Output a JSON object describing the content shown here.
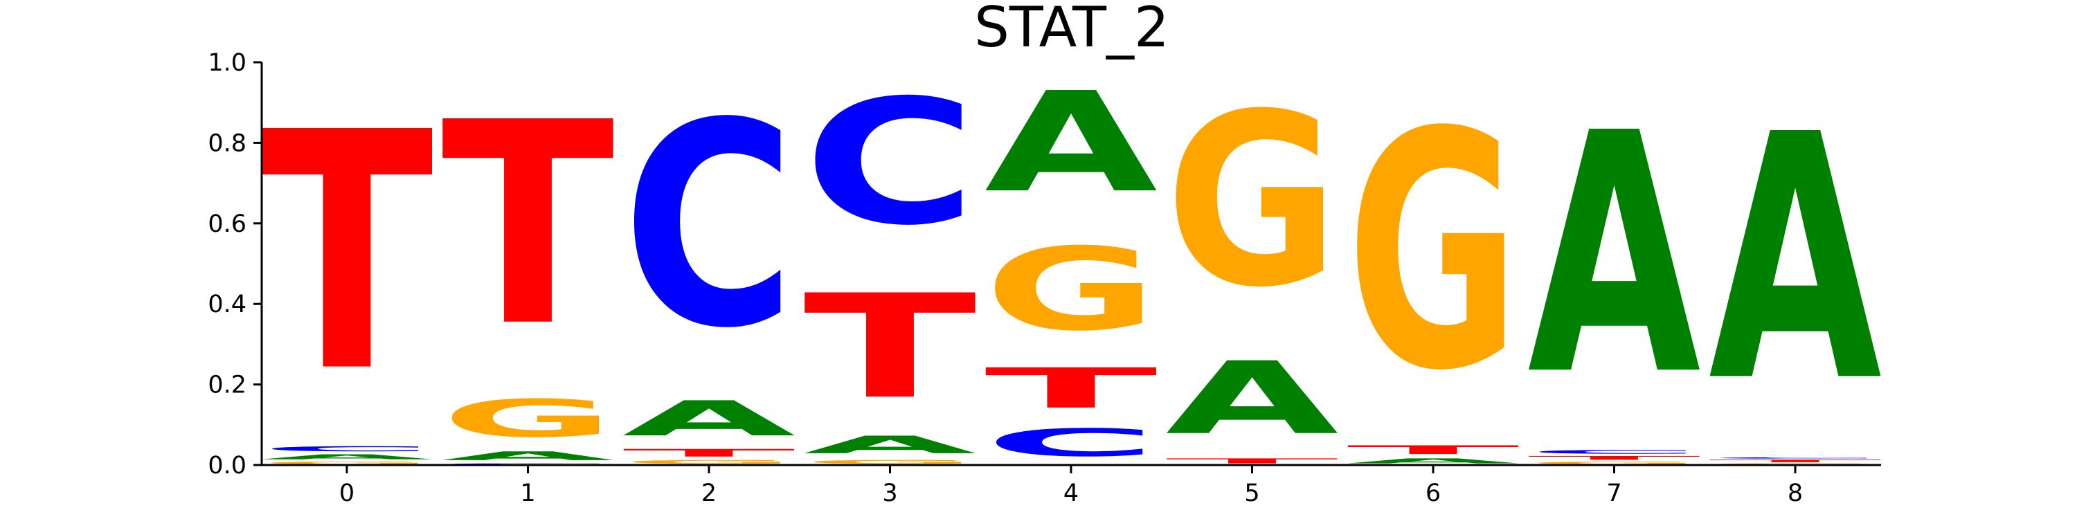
{
  "chart_data": {
    "type": "sequence-logo",
    "title": "STAT_2",
    "xlabel": "",
    "ylabel": "",
    "ylim": [
      0,
      1
    ],
    "yticks": [
      "0.0",
      "0.2",
      "0.4",
      "0.6",
      "0.8",
      "1.0"
    ],
    "positions": [
      "0",
      "1",
      "2",
      "3",
      "4",
      "5",
      "6",
      "7",
      "8"
    ],
    "colors": {
      "A": "#008000",
      "C": "#0000ff",
      "G": "#ffa500",
      "T": "#ff0000"
    },
    "columns": [
      [
        {
          "base": "G",
          "value": 0.01
        },
        {
          "base": "A",
          "value": 0.02
        },
        {
          "base": "C",
          "value": 0.02
        },
        {
          "base": "T",
          "value": 0.95
        }
      ],
      [
        {
          "base": "C",
          "value": 0.005
        },
        {
          "base": "A",
          "value": 0.035
        },
        {
          "base": "G",
          "value": 0.15
        },
        {
          "base": "T",
          "value": 0.81
        }
      ],
      [
        {
          "base": "G",
          "value": 0.015
        },
        {
          "base": "T",
          "value": 0.03
        },
        {
          "base": "A",
          "value": 0.14
        },
        {
          "base": "C",
          "value": 0.815
        }
      ],
      [
        {
          "base": "G",
          "value": 0.015
        },
        {
          "base": "A",
          "value": 0.07
        },
        {
          "base": "T",
          "value": 0.415
        },
        {
          "base": "C",
          "value": 0.5
        }
      ],
      [
        {
          "base": "C",
          "value": 0.11
        },
        {
          "base": "T",
          "value": 0.16
        },
        {
          "base": "G",
          "value": 0.33
        },
        {
          "base": "A",
          "value": 0.4
        }
      ],
      [
        {
          "base": "T",
          "value": 0.02
        },
        {
          "base": "A",
          "value": 0.29
        },
        {
          "base": "G",
          "value": 0.69
        }
      ],
      [
        {
          "base": "A",
          "value": 0.02
        },
        {
          "base": "T",
          "value": 0.035
        },
        {
          "base": "G",
          "value": 0.945
        }
      ],
      [
        {
          "base": "G",
          "value": 0.01
        },
        {
          "base": "T",
          "value": 0.015
        },
        {
          "base": "C",
          "value": 0.015
        },
        {
          "base": "A",
          "value": 0.96
        }
      ],
      [
        {
          "base": "G",
          "value": 0.005
        },
        {
          "base": "T",
          "value": 0.01
        },
        {
          "base": "C",
          "value": 0.005
        },
        {
          "base": "A",
          "value": 0.98
        }
      ]
    ]
  }
}
